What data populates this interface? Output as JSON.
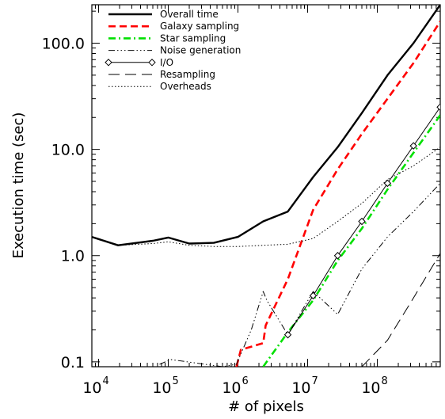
{
  "chart_data": {
    "type": "line",
    "xlabel": "# of pixels",
    "ylabel": "Execution time (sec)",
    "xscale": "log",
    "yscale": "log",
    "xlim": [
      8000,
      800000000
    ],
    "ylim": [
      0.09,
      230
    ],
    "x_ticks": [
      {
        "value": 10000,
        "label": "10",
        "exp": "4"
      },
      {
        "value": 100000,
        "label": "10",
        "exp": "5"
      },
      {
        "value": 1000000,
        "label": "10",
        "exp": "6"
      },
      {
        "value": 10000000,
        "label": "10",
        "exp": "7"
      },
      {
        "value": 100000000,
        "label": "10",
        "exp": "8"
      }
    ],
    "y_ticks": [
      {
        "value": 0.1,
        "label": "0.1"
      },
      {
        "value": 1,
        "label": "1.0"
      },
      {
        "value": 10,
        "label": "10.0"
      },
      {
        "value": 100,
        "label": "100.0"
      }
    ],
    "legend_position": "top-left",
    "series": [
      {
        "name": "Overall time",
        "color": "#000000",
        "style": "solid-thick",
        "x": [
          8000,
          19000,
          60000,
          100000,
          200000,
          450000,
          1000000,
          2300000,
          5200000,
          12000000,
          27000000,
          60000000,
          140000000,
          330000000,
          800000000
        ],
        "y": [
          1.5,
          1.25,
          1.38,
          1.48,
          1.3,
          1.32,
          1.5,
          2.1,
          2.6,
          5.5,
          10.5,
          22,
          50,
          100,
          230
        ]
      },
      {
        "name": "Galaxy sampling",
        "color": "#ff0000",
        "style": "dashed",
        "x": [
          950000,
          1100000,
          2300000,
          2500000,
          5200000,
          12000000,
          27000000,
          60000000,
          140000000,
          330000000,
          800000000
        ],
        "y": [
          0.09,
          0.13,
          0.15,
          0.22,
          0.6,
          2.7,
          6.5,
          14,
          30,
          65,
          160
        ]
      },
      {
        "name": "Star sampling",
        "color": "#00e000",
        "style": "dash-dot",
        "x": [
          2300000,
          5200000,
          12000000,
          27000000,
          60000000,
          140000000,
          330000000,
          800000000
        ],
        "y": [
          0.09,
          0.19,
          0.38,
          0.9,
          1.8,
          4.2,
          9.3,
          21
        ]
      },
      {
        "name": "Noise generation",
        "color": "#000000",
        "style": "dash-dot-dot",
        "x": [
          75000,
          90000,
          110000,
          600000,
          950000,
          1550000,
          2300000,
          2600000,
          5200000,
          12000000,
          27000000,
          60000000,
          140000000,
          330000000,
          800000000
        ],
        "y": [
          0.095,
          0.1,
          0.105,
          0.09,
          0.095,
          0.2,
          0.46,
          0.38,
          0.18,
          0.46,
          0.28,
          0.75,
          1.5,
          2.6,
          4.8
        ]
      },
      {
        "name": "I/O",
        "color": "#000000",
        "style": "solid-diamond",
        "x": [
          5200000,
          12000000,
          27000000,
          60000000,
          140000000,
          330000000,
          800000000
        ],
        "y": [
          0.18,
          0.42,
          1.0,
          2.1,
          4.8,
          10.8,
          25
        ]
      },
      {
        "name": "Resampling",
        "color": "#000000",
        "style": "long-dash",
        "x": [
          60000000,
          140000000,
          330000000,
          800000000
        ],
        "y": [
          0.09,
          0.16,
          0.4,
          1.05
        ]
      },
      {
        "name": "Overheads",
        "color": "#000000",
        "style": "dotted",
        "x": [
          8000,
          19000,
          60000,
          100000,
          200000,
          450000,
          1000000,
          2300000,
          5200000,
          12000000,
          27000000,
          60000000,
          140000000,
          330000000,
          800000000
        ],
        "y": [
          1.5,
          1.25,
          1.3,
          1.35,
          1.25,
          1.22,
          1.22,
          1.25,
          1.28,
          1.45,
          2.1,
          3.1,
          5.2,
          7.0,
          10.5
        ]
      }
    ]
  }
}
